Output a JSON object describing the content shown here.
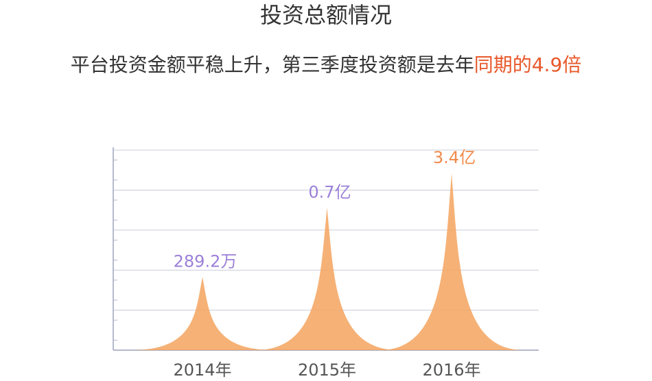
{
  "chart_data": {
    "type": "pictorial-bar",
    "title": "投资总额情况",
    "subtitle": [
      "平台投资金额平稳上升，第三季度投资额是去年",
      "同期的4.9倍"
    ],
    "subtitle_colors": [
      "#333333",
      "#e8582a"
    ],
    "categories": [
      "2014年",
      "2015年",
      "2016年"
    ],
    "values": [
      289.2,
      7000,
      34000
    ],
    "value_labels": [
      "289.2万",
      "0.7亿",
      "3.4亿"
    ],
    "label_colors": [
      "#9b80d8",
      "#9b80d8",
      "#f08a4b"
    ],
    "color": "#f5a35e",
    "ylim": [
      10,
      100000
    ],
    "log": true
  }
}
